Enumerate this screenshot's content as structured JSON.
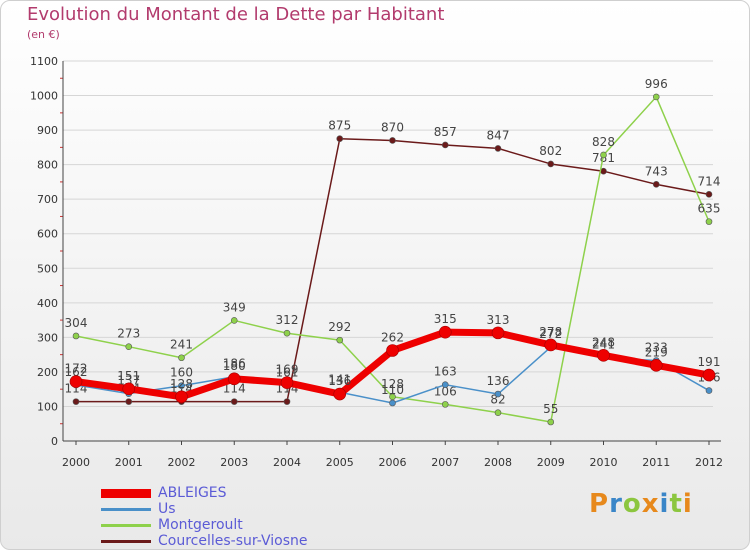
{
  "chart_data": {
    "type": "line",
    "title": "Evolution du Montant de la Dette par Habitant",
    "subtitle": "(en €)",
    "ylim": [
      0,
      1100
    ],
    "yticks": [
      0,
      100,
      200,
      300,
      400,
      500,
      600,
      700,
      800,
      900,
      1000,
      1100
    ],
    "x": [
      "2000",
      "2001",
      "2002",
      "2003",
      "2004",
      "2005",
      "2006",
      "2007",
      "2008",
      "2009",
      "2010",
      "2011",
      "2012"
    ],
    "grid": "horizontal",
    "legend_position": "bottom-left",
    "series": [
      {
        "name": "Courcelles-sur-Viosne",
        "color": "#6b1a1a",
        "values": [
          114,
          114,
          114,
          114,
          114,
          875,
          870,
          857,
          847,
          802,
          781,
          743,
          714
        ]
      },
      {
        "name": "Montgeroult",
        "color": "#8ed14b",
        "values": [
          304,
          273,
          241,
          349,
          312,
          292,
          128,
          106,
          82,
          55,
          828,
          996,
          635
        ]
      },
      {
        "name": "Us",
        "color": "#4a90c9",
        "values": [
          162,
          137,
          160,
          186,
          161,
          141,
          110,
          163,
          136,
          272,
          241,
          233,
          146
        ]
      },
      {
        "name": "ABLEIGES",
        "color": "#ee0000",
        "values": [
          172,
          151,
          128,
          180,
          169,
          136,
          262,
          315,
          313,
          278,
          248,
          219,
          191
        ]
      }
    ],
    "legend_order": [
      "ABLEIGES",
      "Us",
      "Montgeroult",
      "Courcelles-sur-Viosne"
    ]
  },
  "logo": {
    "text": "Proxiti",
    "colors": [
      "#e7891c",
      "#3a86c8",
      "#8cc63f",
      "#e7891c",
      "#3a86c8",
      "#8cc63f",
      "#e7891c"
    ]
  }
}
